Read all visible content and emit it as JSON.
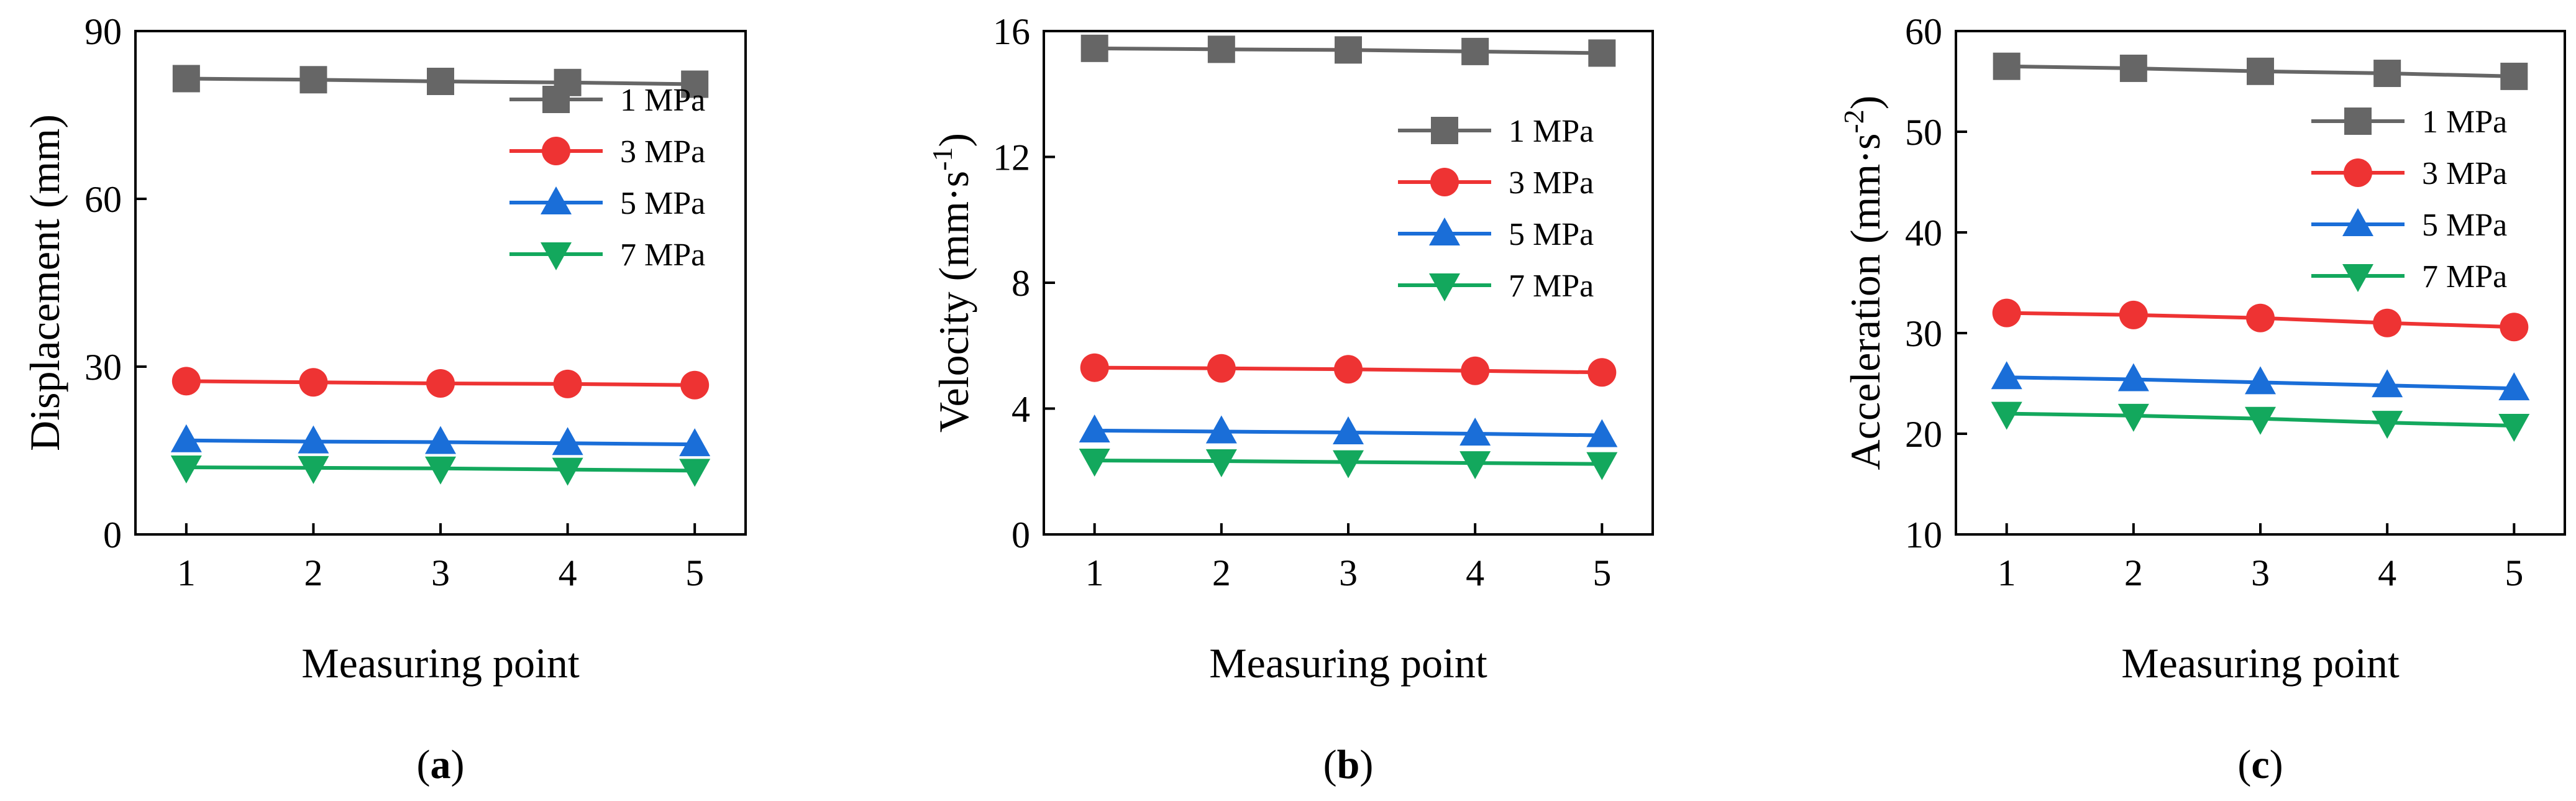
{
  "chart_data": [
    {
      "type": "line",
      "panel_label": "a",
      "xlabel": "Measuring point",
      "ylabel": "Displacement (mm)",
      "xlim": [
        0.6,
        5.4
      ],
      "ylim": [
        0,
        90
      ],
      "x_ticks": [
        1,
        2,
        3,
        4,
        5
      ],
      "y_ticks": [
        0,
        30,
        60,
        90
      ],
      "grid": false,
      "legend_position": "right",
      "series": [
        {
          "name": "1 MPa",
          "color": "#666666",
          "marker": "square",
          "x": [
            1,
            2,
            3,
            4,
            5
          ],
          "values": [
            81.5,
            81.3,
            81.0,
            80.8,
            80.5
          ]
        },
        {
          "name": "3 MPa",
          "color": "#ee3333",
          "marker": "circle",
          "x": [
            1,
            2,
            3,
            4,
            5
          ],
          "values": [
            27.4,
            27.2,
            27.0,
            26.9,
            26.7
          ]
        },
        {
          "name": "5 MPa",
          "color": "#1a6ed8",
          "marker": "triangle-up",
          "x": [
            1,
            2,
            3,
            4,
            5
          ],
          "values": [
            16.8,
            16.6,
            16.5,
            16.3,
            16.1
          ]
        },
        {
          "name": "7 MPa",
          "color": "#13a85d",
          "marker": "triangle-down",
          "x": [
            1,
            2,
            3,
            4,
            5
          ],
          "values": [
            12.0,
            11.9,
            11.8,
            11.6,
            11.4
          ]
        }
      ]
    },
    {
      "type": "line",
      "panel_label": "b",
      "xlabel": "Measuring point",
      "ylabel": "Velocity (mm·s",
      "ylabel_superscript": "-1",
      "ylabel_suffix": ")",
      "xlim": [
        0.6,
        5.4
      ],
      "ylim": [
        0,
        16
      ],
      "x_ticks": [
        1,
        2,
        3,
        4,
        5
      ],
      "y_ticks": [
        0,
        4,
        8,
        12,
        16
      ],
      "grid": false,
      "legend_position": "top-right",
      "series": [
        {
          "name": "1 MPa",
          "color": "#666666",
          "marker": "square",
          "x": [
            1,
            2,
            3,
            4,
            5
          ],
          "values": [
            15.45,
            15.42,
            15.4,
            15.35,
            15.3
          ]
        },
        {
          "name": "3 MPa",
          "color": "#ee3333",
          "marker": "circle",
          "x": [
            1,
            2,
            3,
            4,
            5
          ],
          "values": [
            5.3,
            5.28,
            5.25,
            5.2,
            5.15
          ]
        },
        {
          "name": "5 MPa",
          "color": "#1a6ed8",
          "marker": "triangle-up",
          "x": [
            1,
            2,
            3,
            4,
            5
          ],
          "values": [
            3.3,
            3.27,
            3.24,
            3.2,
            3.15
          ]
        },
        {
          "name": "7 MPa",
          "color": "#13a85d",
          "marker": "triangle-down",
          "x": [
            1,
            2,
            3,
            4,
            5
          ],
          "values": [
            2.35,
            2.33,
            2.3,
            2.27,
            2.24
          ]
        }
      ]
    },
    {
      "type": "line",
      "panel_label": "c",
      "xlabel": "Measuring point",
      "ylabel": "Acceleration (mm·s",
      "ylabel_superscript": "-2",
      "ylabel_suffix": ")",
      "xlim": [
        0.6,
        5.4
      ],
      "ylim": [
        10,
        60
      ],
      "x_ticks": [
        1,
        2,
        3,
        4,
        5
      ],
      "y_ticks": [
        10,
        20,
        30,
        40,
        50,
        60
      ],
      "grid": false,
      "legend_position": "top-right",
      "series": [
        {
          "name": "1 MPa",
          "color": "#666666",
          "marker": "square",
          "x": [
            1,
            2,
            3,
            4,
            5
          ],
          "values": [
            56.5,
            56.3,
            56.0,
            55.8,
            55.5
          ]
        },
        {
          "name": "3 MPa",
          "color": "#ee3333",
          "marker": "circle",
          "x": [
            1,
            2,
            3,
            4,
            5
          ],
          "values": [
            32.0,
            31.8,
            31.5,
            31.0,
            30.6
          ]
        },
        {
          "name": "5 MPa",
          "color": "#1a6ed8",
          "marker": "triangle-up",
          "x": [
            1,
            2,
            3,
            4,
            5
          ],
          "values": [
            25.6,
            25.4,
            25.1,
            24.8,
            24.5
          ]
        },
        {
          "name": "7 MPa",
          "color": "#13a85d",
          "marker": "triangle-down",
          "x": [
            1,
            2,
            3,
            4,
            5
          ],
          "values": [
            22.0,
            21.8,
            21.5,
            21.1,
            20.8
          ]
        }
      ]
    }
  ]
}
